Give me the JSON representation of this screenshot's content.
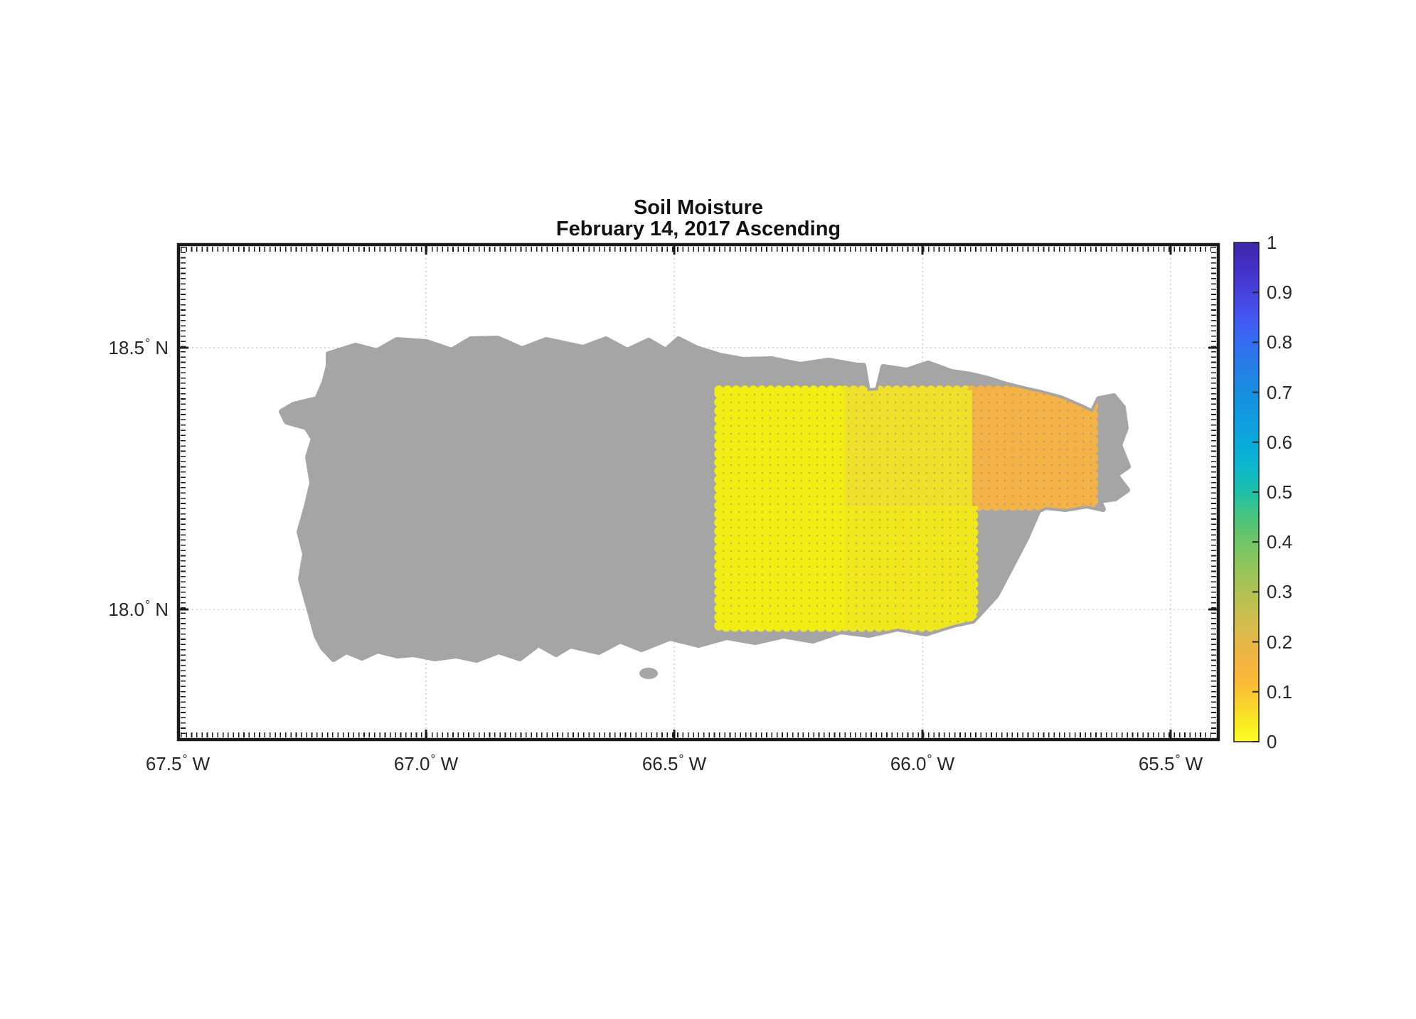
{
  "title": {
    "line1": "Soil Moisture",
    "line2": "February 14, 2017 Ascending"
  },
  "axes": {
    "degree_symbol": "°",
    "x_ticks": [
      {
        "label": "67.5",
        "hemi": "W",
        "lon": 67.5
      },
      {
        "label": "67.0",
        "hemi": "W",
        "lon": 67.0
      },
      {
        "label": "66.5",
        "hemi": "W",
        "lon": 66.5
      },
      {
        "label": "66.0",
        "hemi": "W",
        "lon": 66.0
      },
      {
        "label": "65.5",
        "hemi": "W",
        "lon": 65.5
      }
    ],
    "y_ticks": [
      {
        "label": "18.5",
        "hemi": "N",
        "lat": 18.5
      },
      {
        "label": "18.0",
        "hemi": "N",
        "lat": 18.0
      }
    ]
  },
  "colorbar": {
    "min": 0,
    "max": 1,
    "tick_labels": [
      "1",
      "0.9",
      "0.8",
      "0.7",
      "0.6",
      "0.5",
      "0.4",
      "0.3",
      "0.2",
      "0.1",
      "0"
    ],
    "tick_values": [
      1,
      0.9,
      0.8,
      0.7,
      0.6,
      0.5,
      0.4,
      0.3,
      0.2,
      0.1,
      0
    ],
    "stops": [
      {
        "o": 0.0,
        "c": "#fdfd25"
      },
      {
        "o": 0.04,
        "c": "#f7e922"
      },
      {
        "o": 0.08,
        "c": "#f9cf2e"
      },
      {
        "o": 0.12,
        "c": "#f9bb38"
      },
      {
        "o": 0.16,
        "c": "#f3b441"
      },
      {
        "o": 0.2,
        "c": "#e4b949"
      },
      {
        "o": 0.25,
        "c": "#ccbe4e"
      },
      {
        "o": 0.3,
        "c": "#afc254"
      },
      {
        "o": 0.35,
        "c": "#92c55c"
      },
      {
        "o": 0.4,
        "c": "#70c566"
      },
      {
        "o": 0.45,
        "c": "#49c47d"
      },
      {
        "o": 0.5,
        "c": "#1ec0a9"
      },
      {
        "o": 0.55,
        "c": "#0cb7cd"
      },
      {
        "o": 0.6,
        "c": "#0aaadb"
      },
      {
        "o": 0.65,
        "c": "#109cdf"
      },
      {
        "o": 0.7,
        "c": "#178ede"
      },
      {
        "o": 0.75,
        "c": "#267fe6"
      },
      {
        "o": 0.8,
        "c": "#356df3"
      },
      {
        "o": 0.85,
        "c": "#4457f0"
      },
      {
        "o": 0.9,
        "c": "#4741dc"
      },
      {
        "o": 0.95,
        "c": "#4330c5"
      },
      {
        "o": 1.0,
        "c": "#3e26a8"
      }
    ]
  },
  "map": {
    "region": "Puerto Rico",
    "land_color": "#a5a5a5",
    "ocean_color": "#ffffff",
    "gridline_color": "#d6d6d6"
  },
  "chart_data": {
    "type": "heatmap",
    "title": "Soil Moisture — February 14, 2017 Ascending",
    "x_tick_labels": [
      "67.5° W",
      "67.0° W",
      "66.5° W",
      "66.0° W",
      "65.5° W"
    ],
    "y_tick_labels": [
      "18.5° N",
      "18.0° N"
    ],
    "xlim_deg_west": [
      67.5,
      65.4
    ],
    "ylim_deg_north": [
      17.75,
      18.7
    ],
    "grid": "dotted",
    "legend_position": "colorbar-right",
    "colormap": "parula reversed (0 = yellow, 1 = dark blue)",
    "colorbar_range": [
      0,
      1
    ],
    "no_data_color": "#a5a5a5",
    "cells": [
      {
        "name": "west-cell",
        "w_west": 66.41,
        "w_east": 66.156,
        "lat_south": 17.966,
        "lat_north": 18.419,
        "value": 0.02,
        "color": "#f2ee13"
      },
      {
        "name": "north-central-cell",
        "w_west": 66.156,
        "w_east": 65.9,
        "lat_south": 18.197,
        "lat_north": 18.419,
        "value": 0.06,
        "color": "#efe02b"
      },
      {
        "name": "northeast-cell",
        "w_west": 65.9,
        "w_east": 65.655,
        "lat_south": 18.197,
        "lat_north": 18.419,
        "value": 0.16,
        "color": "#f5b347"
      },
      {
        "name": "south-central-cell",
        "w_west": 66.156,
        "w_east": 65.897,
        "lat_south": 17.966,
        "lat_north": 18.197,
        "value": 0.03,
        "color": "#f0e71c"
      }
    ]
  }
}
